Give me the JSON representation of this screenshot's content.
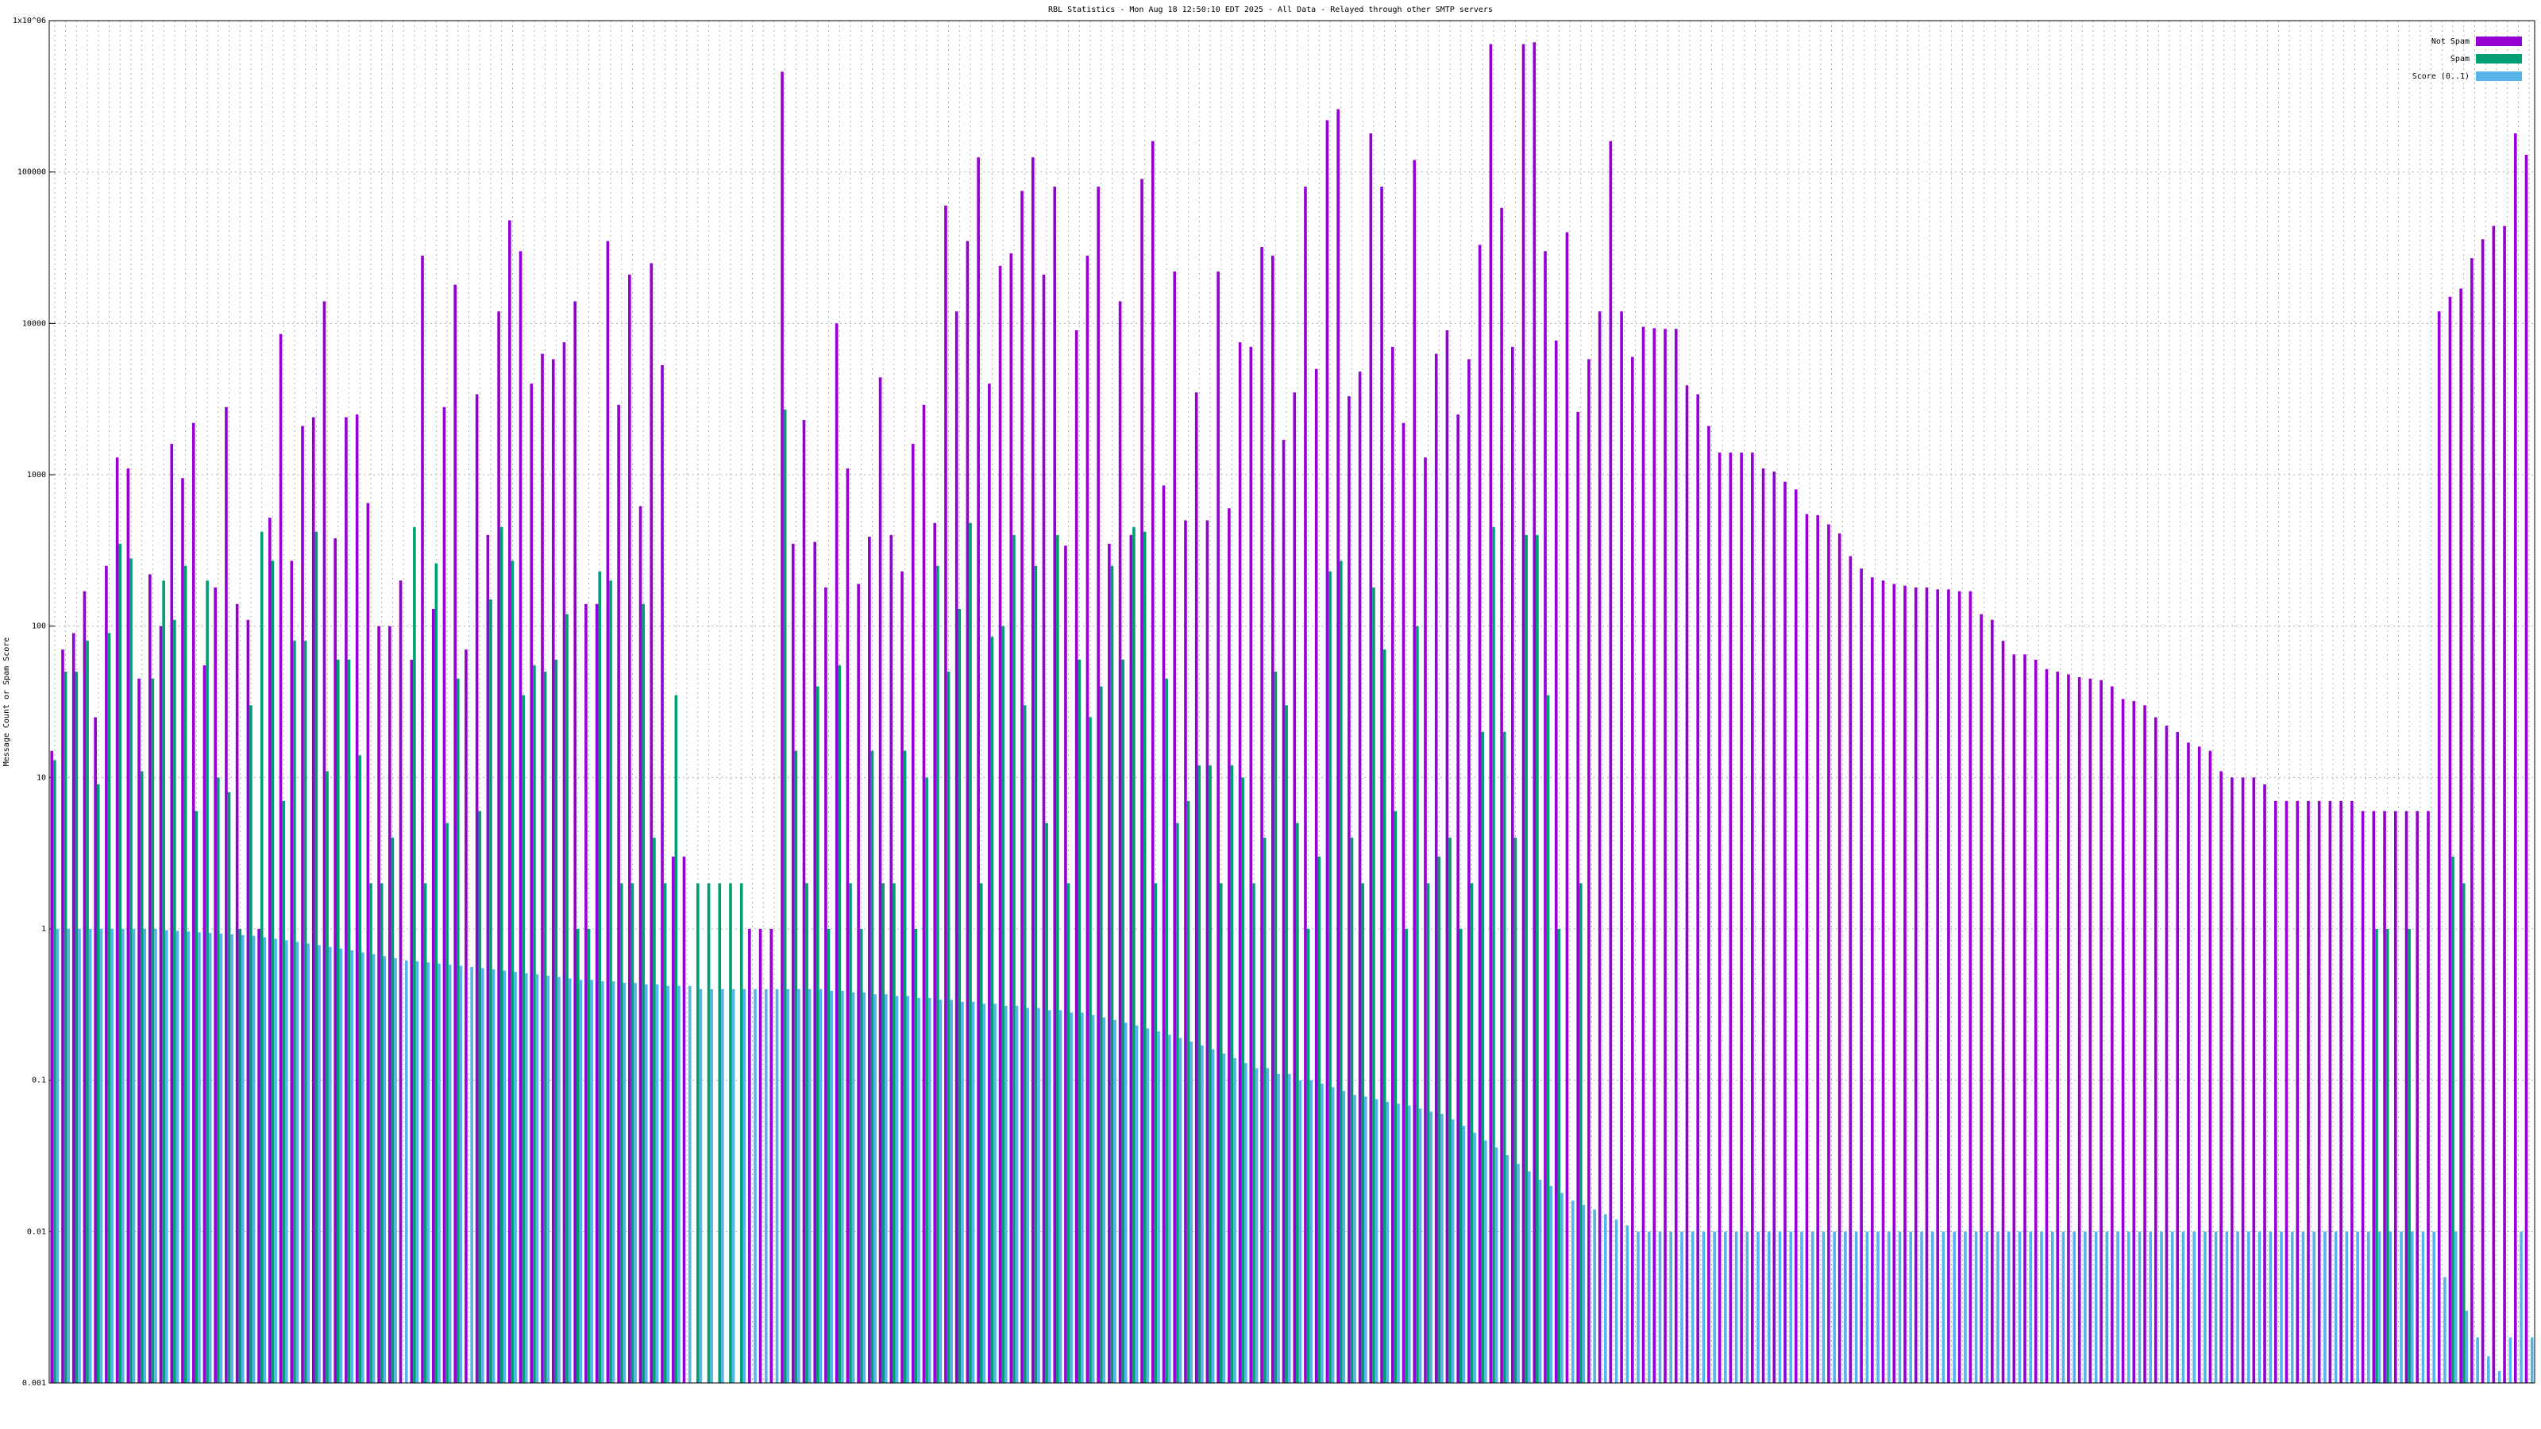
{
  "chart_data": {
    "type": "bar",
    "title": "RBL Statistics - Mon Aug 18 12:50:10 EDT 2025 - All Data - Relayed through other SMTP servers",
    "y_label": "Message Count or Spam Score",
    "log_y": true,
    "grid": true,
    "legend": "upper right",
    "ylim": [
      0.001,
      1000000
    ],
    "yticks": [
      0.001,
      0.01,
      0.1,
      1,
      10,
      100,
      1000,
      10000,
      100000,
      {
        "value": 1000000,
        "label": "1x10^06"
      }
    ],
    "series": [
      {
        "name": "Not Spam",
        "color": "#9400d3",
        "values": [
          15,
          70,
          90,
          170,
          25,
          250,
          1300,
          1100,
          45,
          220,
          100,
          1600,
          950,
          2200,
          55,
          180,
          2800,
          140,
          110,
          1,
          520,
          8500,
          270,
          2100,
          2400,
          14000,
          380,
          2400,
          2500,
          650,
          100,
          100,
          200,
          60,
          28000,
          130,
          2800,
          18000,
          70,
          3400,
          400,
          12000,
          48000,
          30000,
          4000,
          6300,
          5800,
          7500,
          14000,
          140,
          140,
          35000,
          2900,
          21000,
          620,
          25000,
          5300,
          3,
          3,
          null,
          null,
          null,
          null,
          null,
          1,
          1,
          1,
          460000,
          350,
          2300,
          360,
          180,
          10000,
          1100,
          190,
          390,
          4400,
          400,
          230,
          1600,
          2900,
          480,
          60000,
          12000,
          35000,
          125000,
          4000,
          24000,
          29000,
          75000,
          125000,
          21000,
          80000,
          340,
          9000,
          28000,
          80000,
          350,
          14000,
          400,
          90000,
          160000,
          850,
          22000,
          500,
          3500,
          500,
          22000,
          600,
          7500,
          7000,
          32000,
          28000,
          1700,
          3500,
          80000,
          5000,
          220000,
          260000,
          3300,
          4800,
          180000,
          80000,
          7000,
          2200,
          120000,
          1300,
          6300,
          9000,
          2500,
          5800,
          33000,
          700000,
          58000,
          7000,
          700000,
          720000,
          30000,
          7700,
          40000,
          2600,
          5800,
          12000,
          160000,
          12000,
          6000,
          9500,
          9300,
          9200,
          9200,
          3900,
          3400,
          2100,
          1400,
          1400,
          1400,
          1400,
          1100,
          1050,
          900,
          800,
          550,
          540,
          470,
          410,
          290,
          240,
          210,
          200,
          190,
          185,
          180,
          180,
          175,
          175,
          170,
          170,
          120,
          110,
          80,
          65,
          65,
          60,
          52,
          50,
          48,
          46,
          45,
          44,
          40,
          33,
          32,
          30,
          25,
          22,
          20,
          17,
          16,
          15,
          11,
          10,
          10,
          10,
          9,
          7,
          7,
          7,
          7,
          7,
          7,
          7,
          7,
          6,
          6,
          6,
          6,
          6,
          6,
          6,
          12000,
          15000,
          17000,
          27000,
          36000,
          44000,
          44000,
          180000,
          130000
        ]
      },
      {
        "name": "Spam",
        "color": "#009e73",
        "values": [
          13,
          50,
          50,
          80,
          9,
          90,
          350,
          280,
          11,
          45,
          200,
          110,
          250,
          6,
          200,
          10,
          8,
          1,
          30,
          420,
          270,
          7,
          80,
          80,
          420,
          11,
          60,
          60,
          14,
          2,
          2,
          4,
          null,
          450,
          2,
          260,
          5,
          45,
          null,
          6,
          150,
          450,
          270,
          35,
          55,
          50,
          60,
          120,
          1,
          1,
          230,
          200,
          2,
          2,
          140,
          4,
          2,
          35,
          null,
          2,
          2,
          2,
          2,
          2,
          null,
          null,
          null,
          2700,
          15,
          2,
          40,
          1,
          55,
          2,
          1,
          15,
          2,
          2,
          15,
          1,
          10,
          250,
          50,
          130,
          480,
          2,
          85,
          100,
          400,
          30,
          250,
          5,
          400,
          2,
          60,
          25,
          40,
          250,
          60,
          450,
          420,
          2,
          45,
          5,
          7,
          12,
          12,
          2,
          12,
          10,
          2,
          4,
          50,
          30,
          5,
          1,
          3,
          230,
          270,
          4,
          2,
          180,
          70,
          6,
          1,
          100,
          2,
          3,
          4,
          1,
          2,
          20,
          450,
          20,
          4,
          400,
          400,
          35,
          1,
          null,
          2,
          null,
          null,
          null,
          null,
          null,
          null,
          null,
          null,
          null,
          null,
          null,
          null,
          null,
          null,
          null,
          null,
          null,
          null,
          null,
          null,
          null,
          null,
          null,
          null,
          null,
          null,
          null,
          null,
          null,
          null,
          null,
          null,
          null,
          null,
          null,
          null,
          null,
          null,
          null,
          null,
          null,
          null,
          null,
          null,
          null,
          null,
          null,
          null,
          null,
          null,
          null,
          null,
          null,
          null,
          null,
          null,
          null,
          null,
          null,
          null,
          null,
          null,
          null,
          null,
          null,
          null,
          null,
          null,
          null,
          null,
          null,
          null,
          1,
          1,
          null,
          1,
          null,
          null,
          null,
          3,
          2
        ]
      },
      {
        "name": "Score (0..1)",
        "color": "#56b4e9",
        "values": [
          1,
          1,
          1,
          1,
          1,
          1,
          1,
          1,
          1,
          1,
          0.98,
          0.97,
          0.96,
          0.95,
          0.94,
          0.93,
          0.92,
          0.91,
          0.9,
          0.88,
          0.86,
          0.84,
          0.82,
          0.8,
          0.78,
          0.76,
          0.74,
          0.72,
          0.7,
          0.68,
          0.66,
          0.64,
          0.62,
          0.61,
          0.6,
          0.59,
          0.58,
          0.57,
          0.56,
          0.55,
          0.54,
          0.53,
          0.52,
          0.51,
          0.5,
          0.49,
          0.48,
          0.47,
          0.46,
          0.46,
          0.45,
          0.45,
          0.44,
          0.44,
          0.43,
          0.43,
          0.42,
          0.42,
          0.42,
          0.4,
          0.4,
          0.4,
          0.4,
          0.4,
          0.4,
          0.4,
          0.4,
          0.4,
          0.4,
          0.4,
          0.4,
          0.39,
          0.39,
          0.38,
          0.38,
          0.37,
          0.37,
          0.36,
          0.36,
          0.35,
          0.35,
          0.34,
          0.34,
          0.33,
          0.33,
          0.32,
          0.32,
          0.31,
          0.31,
          0.3,
          0.3,
          0.29,
          0.29,
          0.28,
          0.28,
          0.27,
          0.26,
          0.25,
          0.24,
          0.23,
          0.22,
          0.21,
          0.2,
          0.19,
          0.18,
          0.17,
          0.16,
          0.15,
          0.14,
          0.13,
          0.12,
          0.12,
          0.11,
          0.11,
          0.1,
          0.1,
          0.095,
          0.09,
          0.085,
          0.08,
          0.078,
          0.075,
          0.072,
          0.07,
          0.068,
          0.065,
          0.062,
          0.06,
          0.055,
          0.05,
          0.045,
          0.04,
          0.036,
          0.032,
          0.028,
          0.025,
          0.022,
          0.02,
          0.018,
          0.016,
          0.015,
          0.014,
          0.013,
          0.012,
          0.011,
          0.01,
          0.01,
          0.01,
          0.01,
          0.01,
          0.01,
          0.01,
          0.01,
          0.01,
          0.01,
          0.01,
          0.01,
          0.01,
          0.01,
          0.01,
          0.01,
          0.01,
          0.01,
          0.01,
          0.01,
          0.01,
          0.01,
          0.01,
          0.01,
          0.01,
          0.01,
          0.01,
          0.01,
          0.01,
          0.01,
          0.01,
          0.01,
          0.01,
          0.01,
          0.01,
          0.01,
          0.01,
          0.01,
          0.01,
          0.01,
          0.01,
          0.01,
          0.01,
          0.01,
          0.01,
          0.01,
          0.01,
          0.01,
          0.01,
          0.01,
          0.01,
          0.01,
          0.01,
          0.01,
          0.01,
          0.01,
          0.01,
          0.01,
          0.01,
          0.01,
          0.01,
          0.01,
          0.01,
          0.01,
          0.01,
          0.01,
          0.01,
          0.01,
          0.01,
          0.01,
          0.01,
          0.01,
          0.01,
          0.01,
          0.005,
          0.01,
          0.003,
          0.002,
          0.0015,
          0.0012,
          0.002,
          0.01,
          0.002
        ]
      }
    ]
  }
}
